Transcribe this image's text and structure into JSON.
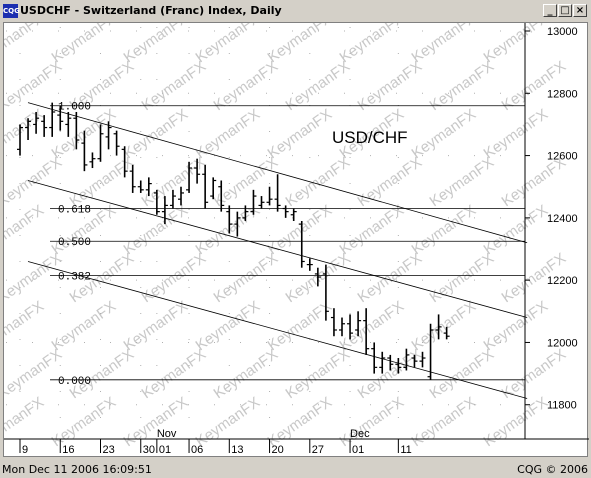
{
  "window": {
    "title": "USDCHF - Switzerland (Franc) Index, Daily",
    "app_icon_text": "CQG",
    "minimize_glyph": "_",
    "maximize_glyph": "□",
    "close_glyph": "×"
  },
  "status": {
    "left": "Mon Dec 11 2006 16:09:51",
    "right": "CQG © 2006"
  },
  "colors": {
    "price": "#000000",
    "watermark": "#c8c8c8",
    "grid": "#b0b0b0",
    "arrow": "#e00000"
  },
  "chart_data": {
    "type": "ohlc-bar",
    "annotation": "USD/CHF",
    "watermark_text": "KeymanFX",
    "y_ticks": [
      "13000",
      "12800",
      "12600",
      "12400",
      "12200",
      "12000",
      "11800"
    ],
    "x_ticks": [
      "9",
      "16",
      "23",
      "30",
      "01",
      "06",
      "13",
      "20",
      "27",
      "01",
      "11"
    ],
    "month_labels": [
      "Nov",
      "Dec"
    ],
    "ylim": [
      11690,
      13000
    ],
    "fib_levels": [
      {
        "label": "1.000",
        "value": 12760
      },
      {
        "label": "0.618",
        "value": 12430
      },
      {
        "label": "0.500",
        "value": 12325
      },
      {
        "label": "0.382",
        "value": 12215
      },
      {
        "label": "0.000",
        "value": 11880
      }
    ],
    "bars": [
      {
        "high": 12700,
        "low": 12600,
        "open": 12620,
        "close": 12690
      },
      {
        "high": 12720,
        "low": 12650,
        "open": 12690,
        "close": 12710
      },
      {
        "high": 12740,
        "low": 12670,
        "open": 12700,
        "close": 12720
      },
      {
        "high": 12730,
        "low": 12660,
        "open": 12710,
        "close": 12690
      },
      {
        "high": 12770,
        "low": 12660,
        "open": 12690,
        "close": 12740
      },
      {
        "high": 12760,
        "low": 12680,
        "open": 12730,
        "close": 12710
      },
      {
        "high": 12740,
        "low": 12660,
        "open": 12700,
        "close": 12720
      },
      {
        "high": 12740,
        "low": 12620,
        "open": 12720,
        "close": 12650
      },
      {
        "high": 12680,
        "low": 12550,
        "open": 12640,
        "close": 12570
      },
      {
        "high": 12610,
        "low": 12560,
        "open": 12580,
        "close": 12590
      },
      {
        "high": 12700,
        "low": 12580,
        "open": 12590,
        "close": 12670
      },
      {
        "high": 12710,
        "low": 12620,
        "open": 12660,
        "close": 12690
      },
      {
        "high": 12680,
        "low": 12600,
        "open": 12670,
        "close": 12630
      },
      {
        "high": 12630,
        "low": 12530,
        "open": 12620,
        "close": 12550
      },
      {
        "high": 12570,
        "low": 12480,
        "open": 12550,
        "close": 12500
      },
      {
        "high": 12520,
        "low": 12480,
        "open": 12500,
        "close": 12490
      },
      {
        "high": 12530,
        "low": 12470,
        "open": 12490,
        "close": 12510
      },
      {
        "high": 12490,
        "low": 12410,
        "open": 12480,
        "close": 12420
      },
      {
        "high": 12470,
        "low": 12380,
        "open": 12420,
        "close": 12440
      },
      {
        "high": 12490,
        "low": 12430,
        "open": 12440,
        "close": 12470
      },
      {
        "high": 12500,
        "low": 12440,
        "open": 12460,
        "close": 12480
      },
      {
        "high": 12580,
        "low": 12480,
        "open": 12490,
        "close": 12560
      },
      {
        "high": 12590,
        "low": 12510,
        "open": 12560,
        "close": 12540
      },
      {
        "high": 12570,
        "low": 12430,
        "open": 12540,
        "close": 12450
      },
      {
        "high": 12530,
        "low": 12460,
        "open": 12470,
        "close": 12520
      },
      {
        "high": 12520,
        "low": 12420,
        "open": 12500,
        "close": 12440
      },
      {
        "high": 12440,
        "low": 12350,
        "open": 12420,
        "close": 12380
      },
      {
        "high": 12420,
        "low": 12340,
        "open": 12380,
        "close": 12400
      },
      {
        "high": 12440,
        "low": 12390,
        "open": 12400,
        "close": 12420
      },
      {
        "high": 12490,
        "low": 12410,
        "open": 12420,
        "close": 12470
      },
      {
        "high": 12470,
        "low": 12430,
        "open": 12440,
        "close": 12450
      },
      {
        "high": 12500,
        "low": 12440,
        "open": 12450,
        "close": 12460
      },
      {
        "high": 12540,
        "low": 12420,
        "open": 12460,
        "close": 12440
      },
      {
        "high": 12440,
        "low": 12400,
        "open": 12430,
        "close": 12420
      },
      {
        "high": 12430,
        "low": 12390,
        "open": 12410,
        "close": 12420
      },
      {
        "high": 12390,
        "low": 12240,
        "open": 12380,
        "close": 12260
      },
      {
        "high": 12270,
        "low": 12230,
        "open": 12250,
        "close": 12250
      },
      {
        "high": 12240,
        "low": 12180,
        "open": 12220,
        "close": 12210
      },
      {
        "high": 12250,
        "low": 12070,
        "open": 12220,
        "close": 12100
      },
      {
        "high": 12110,
        "low": 12020,
        "open": 12080,
        "close": 12040
      },
      {
        "high": 12080,
        "low": 12020,
        "open": 12040,
        "close": 12060
      },
      {
        "high": 12090,
        "low": 12010,
        "open": 12060,
        "close": 12030
      },
      {
        "high": 12100,
        "low": 12020,
        "open": 12040,
        "close": 12070
      },
      {
        "high": 12110,
        "low": 11960,
        "open": 12070,
        "close": 11980
      },
      {
        "high": 12000,
        "low": 11900,
        "open": 11980,
        "close": 11920
      },
      {
        "high": 11970,
        "low": 11900,
        "open": 11920,
        "close": 11950
      },
      {
        "high": 11960,
        "low": 11910,
        "open": 11950,
        "close": 11930
      },
      {
        "high": 11950,
        "low": 11900,
        "open": 11930,
        "close": 11920
      },
      {
        "high": 11980,
        "low": 11910,
        "open": 11920,
        "close": 11960
      },
      {
        "high": 11960,
        "low": 11920,
        "open": 11950,
        "close": 11940
      },
      {
        "high": 11970,
        "low": 11920,
        "open": 11940,
        "close": 11950
      },
      {
        "high": 12060,
        "low": 11880,
        "open": 11890,
        "close": 12040
      },
      {
        "high": 12090,
        "low": 12010,
        "open": 12040,
        "close": 12050
      },
      {
        "high": 12050,
        "low": 12010,
        "open": 12030,
        "close": 12020
      }
    ],
    "channel_lines": [
      {
        "x0": 0,
        "y0": 12770,
        "x1": 63,
        "y1": 12320
      },
      {
        "x0": 0,
        "y0": 12520,
        "x1": 63,
        "y1": 12080
      },
      {
        "x0": 0,
        "y0": 12260,
        "x1": 63,
        "y1": 11820
      }
    ]
  }
}
